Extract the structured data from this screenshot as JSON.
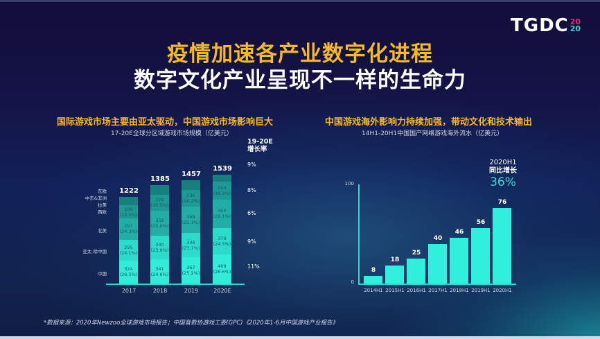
{
  "logo": {
    "text": "TGDC",
    "year_top": "20",
    "year_bottom": "20"
  },
  "title": {
    "line1": "疫情加速各产业数字化进程",
    "line2": "数字文化产业呈现不一样的生命力"
  },
  "left_section": {
    "title": "国际游戏市场主要由亚太驱动，中国游戏市场影响巨大",
    "subtitle": "17-20E全球分区域游戏市场规模（亿美元）",
    "growth_header_1": "19-20E",
    "growth_header_2": "增长率"
  },
  "right_section": {
    "title": "中国游戏海外影响力持续加强，带动文化和技术输出",
    "subtitle": "14H1-20H1中国国产网络游戏海外流水（亿美元）",
    "annotation_line1": "2020H1",
    "annotation_line2": "同比增长",
    "annotation_value": "36%"
  },
  "source": "*数据来源：2020年Newzoo全球游戏市场报告；中国音数协游戏工委(GPC)《2020年1-6月中国游戏产业报告》",
  "colors": {
    "accent_yellow": "#f5b928",
    "accent_teal": "#2fd6d0",
    "bar_bright": "#2ff0dc",
    "logo_pink": "#e8267a"
  },
  "chart_data": [
    {
      "type": "bar",
      "stacked": true,
      "title": "17-20E全球分区域游戏市场规模（亿美元）",
      "categories": [
        "2017",
        "2018",
        "2019",
        "2020E"
      ],
      "totals": [
        "1222",
        "1385",
        "1457",
        "1539"
      ],
      "region_labels": [
        "东欧",
        "中东&非洲",
        "拉美",
        "西欧",
        "北美",
        "亚太-除中国",
        "中国"
      ],
      "series": [
        {
          "name": "中国",
          "values": [
            324,
            341,
            367,
            409
          ],
          "labels": [
            "324\n(26.5%)",
            "341\n(24.6%)",
            "367\n(25.2%)",
            "409\n(26.6%)"
          ],
          "color": "#30ecd8"
        },
        {
          "name": "亚太-除中国",
          "values": [
            295,
            330,
            346,
            376
          ],
          "labels": [
            "295\n(24.1%)",
            "330\n(23.9%)",
            "346\n(23.7%)",
            "376\n(24.5%)"
          ],
          "color": "#2cdccb"
        },
        {
          "name": "北美",
          "values": [
            297,
            355,
            368,
            400
          ],
          "labels": [
            "297\n(24.3%)",
            "355\n(25.6%)",
            "368\n(25.3%)",
            "400\n(26.1%)"
          ],
          "color": "#22aea5"
        },
        {
          "name": "西欧",
          "values": [
            189,
            229,
            236,
            254
          ],
          "labels": [
            "189\n(15.5%)",
            "229\n(16.5%)",
            "236\n(16.2%)",
            "254\n(16.5%)"
          ],
          "color": "#1d9a94"
        },
        {
          "name": "东欧/中东&非洲/拉美",
          "values": [
            117,
            130,
            140,
            100
          ],
          "labels": [
            "",
            "",
            "",
            ""
          ],
          "color": "#177f7d"
        }
      ],
      "growth_rates": [
        "9%",
        "8%",
        "6%",
        "9%",
        "11%"
      ],
      "growth_header": "19-20E 增长率"
    },
    {
      "type": "bar",
      "title": "14H1-20H1中国国产网络游戏海外流水（亿美元）",
      "categories": [
        "2014H1",
        "2015H1",
        "2016H1",
        "2017H1",
        "2018H1",
        "2019H1",
        "2020H1"
      ],
      "values": [
        8,
        18,
        25,
        40,
        46,
        56,
        76
      ],
      "value_labels": [
        "8",
        "18",
        "25",
        "40",
        "46",
        "56",
        "76"
      ],
      "ylim": [
        0,
        100
      ],
      "yticks": [
        "0",
        "100"
      ],
      "annotation": "2020H1 同比增长 36%"
    }
  ]
}
